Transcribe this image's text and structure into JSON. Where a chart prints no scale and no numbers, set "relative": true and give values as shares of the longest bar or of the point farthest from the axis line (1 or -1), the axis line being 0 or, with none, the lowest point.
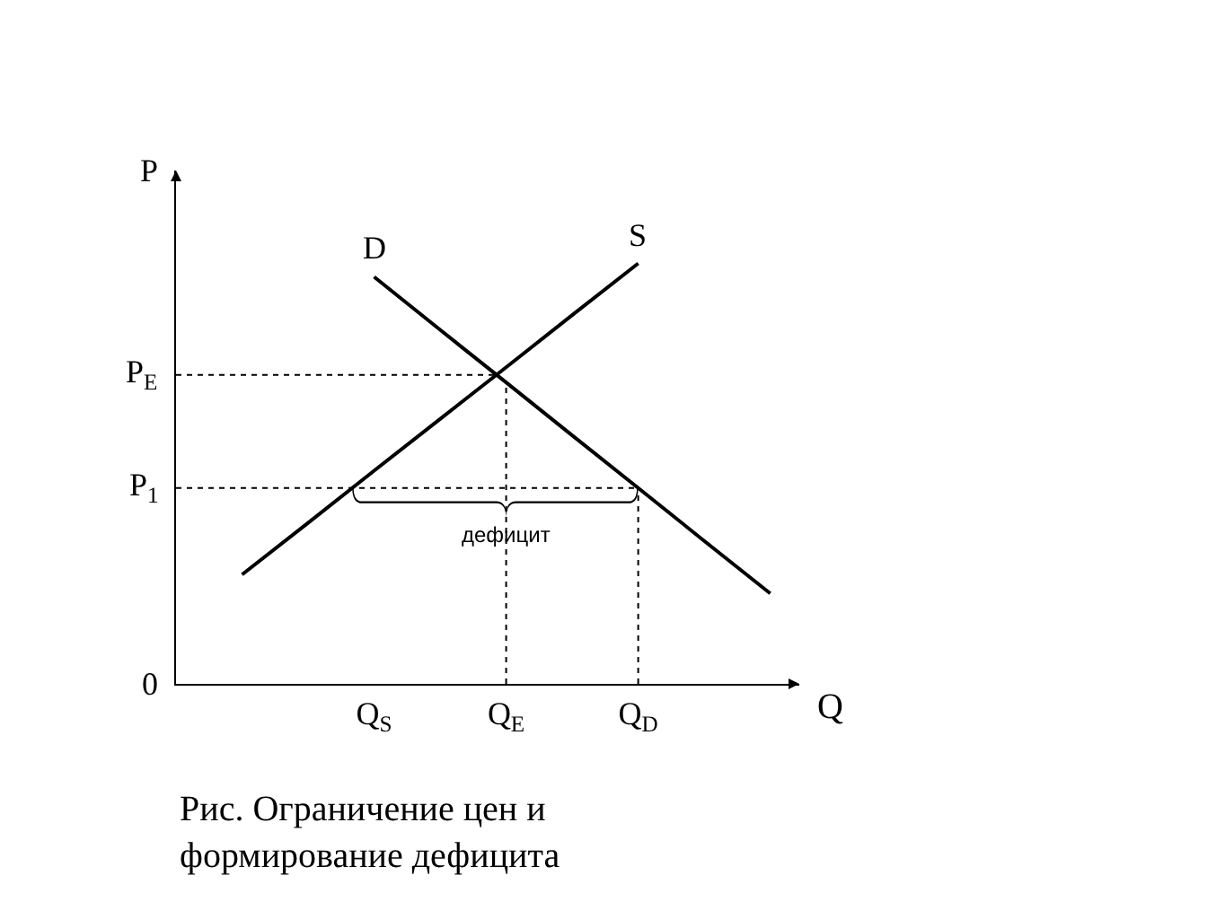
{
  "chart_data": {
    "type": "line",
    "relative": true,
    "xlabel": "Q",
    "ylabel": "P",
    "marker": "none",
    "line_style": "solid",
    "legend": false,
    "categories": [
      null,
      null,
      "Q$_{S}$",
      null,
      "Q$_{E}$",
      null,
      "Q$_{D}$",
      null,
      null
    ],
    "series": [
      {
        "name": "D",
        "color": "#000000",
        "values": [
          null,
          null,
          0.968,
          0.842,
          0.717,
          0.591,
          0.466,
          0.34,
          0.215
        ]
      },
      {
        "name": "S",
        "color": "#000000",
        "values": [
          0.26,
          0.383,
          0.507,
          0.63,
          0.753,
          0.877,
          1,
          null,
          null
        ]
      }
    ],
    "ref_lines": [
      {
        "axis": "y",
        "value": 0.735,
        "label": "P$_{E}$",
        "line_style": "dotted",
        "color": "#000000"
      },
      {
        "axis": "y",
        "value": 0.466,
        "label": "P$_{1}$",
        "line_style": "dotted",
        "color": "#000000"
      },
      {
        "axis": "x",
        "value": "Q$_{E}$",
        "label": null,
        "line_style": "dotted",
        "color": "#000000"
      },
      {
        "axis": "x",
        "value": "Q$_{D}$",
        "label": null,
        "line_style": "dotted",
        "color": "#000000"
      }
    ],
    "annotations": [
      "0",
      {
        "text": "дефицит",
        "x": "Q$_{E}$",
        "y": 0.466
      },
      "Рис. Ограничение цен и\nформирование дефицита"
    ]
  }
}
